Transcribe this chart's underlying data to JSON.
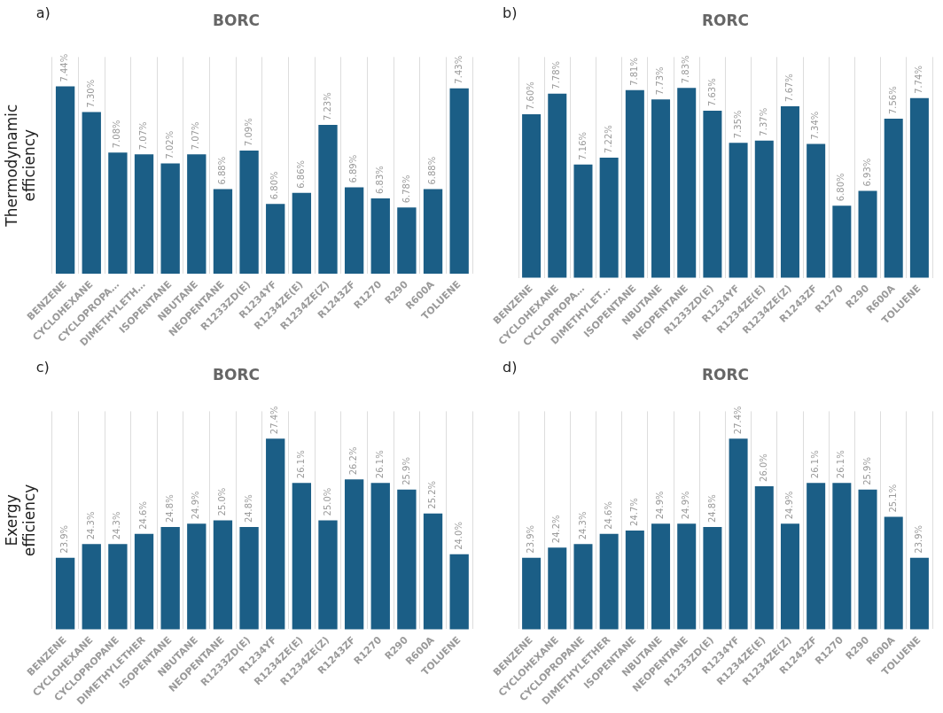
{
  "chart_data": [
    {
      "type": "bar",
      "title": "BORC",
      "ylabel": "Thermodynamic efficiency",
      "annotations": [
        "a)"
      ],
      "categories": [
        "BENZENE",
        "CYCLOHEXANE",
        "CYCLOPROPA…",
        "DIMETHYLETH…",
        "ISOPENTANE",
        "NBUTANE",
        "NEOPENTANE",
        "R1233ZD(E)",
        "R1234YF",
        "R1234ZE(E)",
        "R1234ZE(Z)",
        "R1243ZF",
        "R1270",
        "R290",
        "R600A",
        "TOLUENE"
      ],
      "values": [
        7.44,
        7.3,
        7.08,
        7.07,
        7.02,
        7.07,
        6.88,
        7.09,
        6.8,
        6.86,
        7.23,
        6.89,
        6.83,
        6.78,
        6.88,
        7.43
      ],
      "value_labels": [
        "7.44%",
        "7.30%",
        "7.08%",
        "7.07%",
        "7.02%",
        "7.07%",
        "6.88%",
        "7.09%",
        "6.80%",
        "6.86%",
        "7.23%",
        "6.89%",
        "6.83%",
        "6.78%",
        "6.88%",
        "7.43%"
      ],
      "color": "#1b5e86",
      "ylim": [
        6.42,
        7.6
      ],
      "grid": "x",
      "tick_labels": "x"
    },
    {
      "type": "bar",
      "title": "RORC",
      "annotations": [
        "b)"
      ],
      "categories": [
        "BENZENE",
        "CYCLOHEXANE",
        "CYCLOPROPA…",
        "DIMETHYLET…",
        "ISOPENTANE",
        "NBUTANE",
        "NEOPENTANE",
        "R1233ZD(E)",
        "R1234YF",
        "R1234ZE(E)",
        "R1234ZE(Z)",
        "R1243ZF",
        "R1270",
        "R290",
        "R600A",
        "TOLUENE"
      ],
      "values": [
        7.6,
        7.78,
        7.16,
        7.22,
        7.81,
        7.73,
        7.83,
        7.63,
        7.35,
        7.37,
        7.67,
        7.34,
        6.8,
        6.93,
        7.56,
        7.74
      ],
      "value_labels": [
        "7.60%",
        "7.78%",
        "7.16%",
        "7.22%",
        "7.81%",
        "7.73%",
        "7.83%",
        "7.63%",
        "7.35%",
        "7.37%",
        "7.67%",
        "7.34%",
        "6.80%",
        "6.93%",
        "7.56%",
        "7.74%"
      ],
      "color": "#1b5e86",
      "ylim": [
        6.17,
        8.1
      ],
      "grid": "x",
      "tick_labels": "x"
    },
    {
      "type": "bar",
      "title": "BORC",
      "ylabel": "Exergy efficiency",
      "annotations": [
        "c)"
      ],
      "categories": [
        "BENZENE",
        "CYCLOHEXANE",
        "CYCLOPROPANE",
        "DIMETHYLETHER",
        "ISOPENTANE",
        "NBUTANE",
        "NEOPENTANE",
        "R1233ZD(E)",
        "R1234YF",
        "R1234ZE(E)",
        "R1234ZE(Z)",
        "R1243ZF",
        "R1270",
        "R290",
        "R600A",
        "TOLUENE"
      ],
      "values": [
        23.9,
        24.3,
        24.3,
        24.6,
        24.8,
        24.9,
        25.0,
        24.8,
        27.4,
        26.1,
        25.0,
        26.2,
        26.1,
        25.9,
        25.2,
        24.0
      ],
      "value_labels": [
        "23.9%",
        "24.3%",
        "24.3%",
        "24.6%",
        "24.8%",
        "24.9%",
        "25.0%",
        "24.8%",
        "27.4%",
        "26.1%",
        "25.0%",
        "26.2%",
        "26.1%",
        "25.9%",
        "25.2%",
        "24.0%"
      ],
      "color": "#1b5e86",
      "ylim": [
        21.8,
        28.2
      ],
      "grid": "x",
      "tick_labels": "x"
    },
    {
      "type": "bar",
      "title": "RORC",
      "annotations": [
        "d)"
      ],
      "categories": [
        "BENZENE",
        "CYCLOHEXANE",
        "CYCLOPROPANE",
        "DIMETHYLETHER",
        "ISOPENTANE",
        "NBUTANE",
        "NEOPENTANE",
        "R1233ZD(E)",
        "R1234YF",
        "R1234ZE(E)",
        "R1234ZE(Z)",
        "R1243ZF",
        "R1270",
        "R290",
        "R600A",
        "TOLUENE"
      ],
      "values": [
        23.9,
        24.2,
        24.3,
        24.6,
        24.7,
        24.9,
        24.9,
        24.8,
        27.4,
        26.0,
        24.9,
        26.1,
        26.1,
        25.9,
        25.1,
        23.9
      ],
      "value_labels": [
        "23.9%",
        "24.2%",
        "24.3%",
        "24.6%",
        "24.7%",
        "24.9%",
        "24.9%",
        "24.8%",
        "27.4%",
        "26.0%",
        "24.9%",
        "26.1%",
        "26.1%",
        "25.9%",
        "25.1%",
        "23.9%"
      ],
      "color": "#1b5e86",
      "ylim": [
        21.8,
        28.2
      ],
      "grid": "x",
      "tick_labels": "x"
    }
  ]
}
